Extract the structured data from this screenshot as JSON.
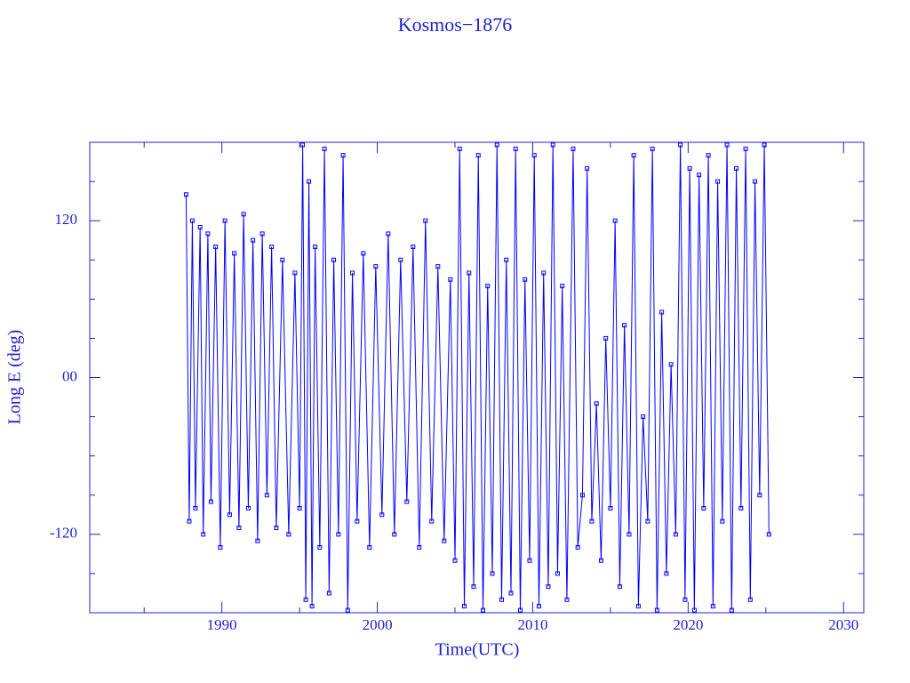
{
  "chart_data": {
    "type": "line",
    "title": "Kosmos−1876",
    "xlabel": "Time(UTC)",
    "ylabel": "Long E (deg)",
    "xlim": [
      1981.5,
      2031.3
    ],
    "ylim": [
      -180,
      180
    ],
    "xticks": [
      1990,
      2000,
      2010,
      2020,
      2030
    ],
    "yticks": [
      -120,
      {
        "value": 0,
        "label": "00"
      },
      120
    ],
    "minor_xticks": [
      1985,
      1995,
      2005,
      2015,
      2025
    ],
    "minor_yticks": [
      -150,
      -90,
      -60,
      -30,
      30,
      60,
      90,
      150
    ],
    "color": "#0000ff",
    "markers": true,
    "x": [
      1987.7,
      1987.9,
      1988.1,
      1988.3,
      1988.6,
      1988.8,
      1989.1,
      1989.3,
      1989.6,
      1989.9,
      1990.2,
      1990.5,
      1990.8,
      1991.1,
      1991.4,
      1991.7,
      1992.0,
      1992.3,
      1992.6,
      1992.9,
      1993.2,
      1993.5,
      1993.9,
      1994.3,
      1994.7,
      1995.0,
      1995.2,
      1995.4,
      1995.6,
      1995.8,
      1996.0,
      1996.3,
      1996.6,
      1996.9,
      1997.2,
      1997.5,
      1997.8,
      1998.1,
      1998.4,
      1998.7,
      1999.1,
      1999.5,
      1999.9,
      2000.3,
      2000.7,
      2001.1,
      2001.5,
      2001.9,
      2002.3,
      2002.7,
      2003.1,
      2003.5,
      2003.9,
      2004.3,
      2004.7,
      2005.0,
      2005.3,
      2005.6,
      2005.9,
      2006.2,
      2006.5,
      2006.8,
      2007.1,
      2007.4,
      2007.7,
      2008.0,
      2008.3,
      2008.6,
      2008.9,
      2009.2,
      2009.5,
      2009.8,
      2010.1,
      2010.4,
      2010.7,
      2011.0,
      2011.3,
      2011.6,
      2011.9,
      2012.2,
      2012.6,
      2012.9,
      2013.2,
      2013.5,
      2013.8,
      2014.1,
      2014.4,
      2014.7,
      2015.0,
      2015.3,
      2015.6,
      2015.9,
      2016.2,
      2016.5,
      2016.8,
      2017.1,
      2017.4,
      2017.7,
      2018.0,
      2018.3,
      2018.6,
      2018.9,
      2019.2,
      2019.5,
      2019.8,
      2020.1,
      2020.4,
      2020.7,
      2021.0,
      2021.3,
      2021.6,
      2021.9,
      2022.2,
      2022.5,
      2022.8,
      2023.1,
      2023.4,
      2023.7,
      2024.0,
      2024.3,
      2024.6,
      2024.9,
      2025.2
    ],
    "values": [
      140,
      -110,
      120,
      -100,
      115,
      -120,
      110,
      -95,
      100,
      -130,
      120,
      -105,
      95,
      -115,
      125,
      -100,
      105,
      -125,
      110,
      -90,
      100,
      -115,
      90,
      -120,
      80,
      -100,
      178,
      -170,
      150,
      -175,
      100,
      -130,
      175,
      -165,
      90,
      -120,
      170,
      -178,
      80,
      -110,
      95,
      -130,
      85,
      -105,
      110,
      -120,
      90,
      -95,
      100,
      -130,
      120,
      -110,
      85,
      -125,
      75,
      -140,
      175,
      -175,
      80,
      -160,
      170,
      -178,
      70,
      -150,
      178,
      -170,
      90,
      -165,
      175,
      -178,
      75,
      -140,
      170,
      -175,
      80,
      -160,
      178,
      -150,
      70,
      -170,
      175,
      -130,
      -90,
      160,
      -110,
      -20,
      -140,
      30,
      -100,
      120,
      -160,
      40,
      -120,
      170,
      -175,
      -30,
      -110,
      175,
      -178,
      50,
      -150,
      10,
      -120,
      178,
      -170,
      160,
      -178,
      155,
      -100,
      170,
      -175,
      150,
      -110,
      178,
      -178,
      160,
      -100,
      175,
      -170,
      150,
      -90,
      178,
      -120
    ]
  }
}
